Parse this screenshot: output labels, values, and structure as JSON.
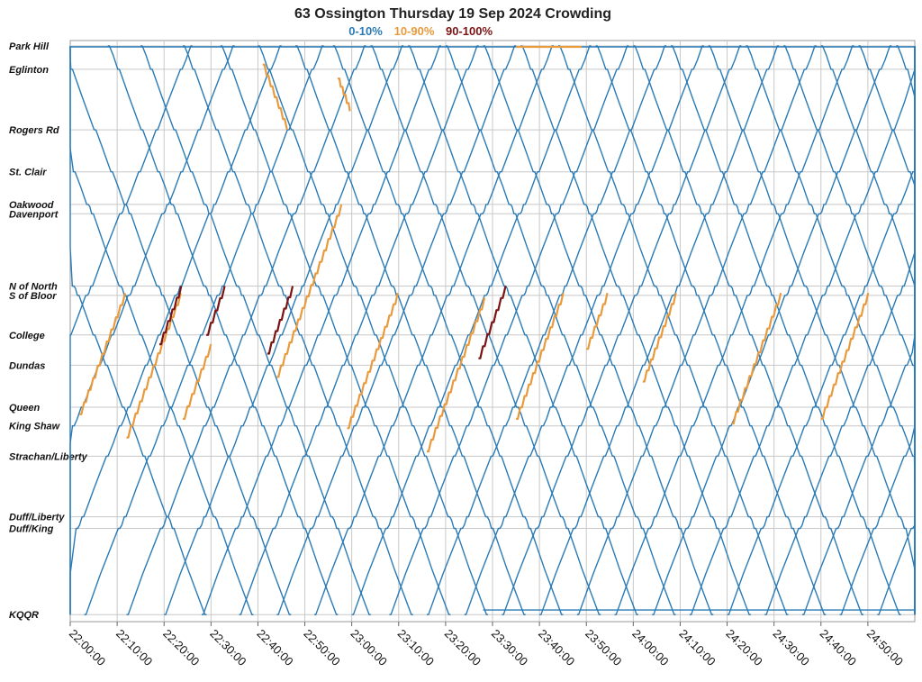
{
  "chart_data": {
    "type": "line",
    "title": "63 Ossington Thursday 19 Sep 2024 Crowding",
    "legend": [
      {
        "label": "0-10%",
        "color": "#2a7ab5"
      },
      {
        "label": "10-90%",
        "color": "#e89a3c"
      },
      {
        "label": "90-100%",
        "color": "#7a1414"
      }
    ],
    "x_tick_labels": [
      "22:00:00",
      "22:10:00",
      "22:20:00",
      "22:30:00",
      "22:40:00",
      "22:50:00",
      "23:00:00",
      "23:10:00",
      "23:20:00",
      "23:30:00",
      "23:40:00",
      "23:50:00",
      "24:00:00",
      "24:10:00",
      "24:20:00",
      "24:30:00",
      "24:40:00",
      "24:50:00"
    ],
    "x_range_minutes": [
      0,
      180
    ],
    "stops": [
      {
        "name": "Park Hill",
        "distance": 0
      },
      {
        "name": "Eglinton",
        "distance": 0.5
      },
      {
        "name": "Rogers Rd",
        "distance": 1.8
      },
      {
        "name": "St. Clair",
        "distance": 2.7
      },
      {
        "name": "Oakwood",
        "distance": 3.4
      },
      {
        "name": "Davenport",
        "distance": 3.6
      },
      {
        "name": "N of North",
        "distance": 5.15
      },
      {
        "name": "S of Bloor",
        "distance": 5.35
      },
      {
        "name": "College",
        "distance": 6.2
      },
      {
        "name": "Dundas",
        "distance": 6.85
      },
      {
        "name": "Queen",
        "distance": 7.75
      },
      {
        "name": "King Shaw",
        "distance": 8.15
      },
      {
        "name": "Strachan/Liberty",
        "distance": 8.8
      },
      {
        "name": "Duff/Liberty",
        "distance": 10.1
      },
      {
        "name": "Duff/King",
        "distance": 10.35
      },
      {
        "name": "KQQR",
        "distance": 12.2
      }
    ],
    "grid": true,
    "y_range": [
      0,
      12.35
    ],
    "trips_southbound_start_minutes": [
      -20,
      -10,
      -2,
      8,
      15,
      24,
      32,
      40,
      48,
      56,
      64,
      72,
      80,
      88,
      96,
      104,
      112,
      120,
      128,
      136,
      144,
      152,
      160,
      168,
      176
    ],
    "trips_northbound_start_minutes": [
      -25,
      -16,
      -6,
      3,
      12,
      20,
      28,
      36,
      44,
      52,
      60,
      68,
      76,
      84,
      92,
      100,
      108,
      116,
      124,
      132,
      140,
      148,
      156,
      164,
      172
    ],
    "southbound_run_minutes": 44,
    "northbound_run_minutes": 46,
    "crowded_segments": [
      {
        "direction": "north",
        "start_minute": 2,
        "from": 7.9,
        "to": 5.3,
        "level": "10-90%"
      },
      {
        "direction": "north",
        "start_minute": 12,
        "from": 8.4,
        "to": 5.3,
        "level": "10-90%"
      },
      {
        "direction": "north",
        "start_minute": 19,
        "from": 6.4,
        "to": 5.15,
        "level": "90-100%"
      },
      {
        "direction": "north",
        "start_minute": 24,
        "from": 8.0,
        "to": 6.4,
        "level": "10-90%"
      },
      {
        "direction": "north",
        "start_minute": 29,
        "from": 6.2,
        "to": 5.15,
        "level": "90-100%"
      },
      {
        "direction": "north",
        "start_minute": 42,
        "from": 6.6,
        "to": 5.15,
        "level": "90-100%"
      },
      {
        "direction": "north",
        "start_minute": 44,
        "from": 7.1,
        "to": 3.4,
        "level": "10-90%"
      },
      {
        "direction": "south",
        "start_minute": 41,
        "from": 0.4,
        "to": 1.8,
        "level": "10-90%"
      },
      {
        "direction": "south",
        "start_minute": 57,
        "from": 0.7,
        "to": 1.4,
        "level": "10-90%"
      },
      {
        "direction": "north",
        "start_minute": 59,
        "from": 8.2,
        "to": 5.3,
        "level": "10-90%"
      },
      {
        "direction": "north",
        "start_minute": 76,
        "from": 8.7,
        "to": 5.4,
        "level": "10-90%"
      },
      {
        "direction": "north",
        "start_minute": 87,
        "from": 6.7,
        "to": 5.15,
        "level": "90-100%"
      },
      {
        "direction": "north",
        "start_minute": 95,
        "from": 8.0,
        "to": 5.3,
        "level": "10-90%"
      },
      {
        "direction": "north",
        "start_minute": 110,
        "from": 6.5,
        "to": 5.3,
        "level": "10-90%"
      },
      {
        "direction": "north",
        "start_minute": 122,
        "from": 7.2,
        "to": 5.3,
        "level": "10-90%"
      },
      {
        "direction": "north",
        "start_minute": 141,
        "from": 8.1,
        "to": 5.3,
        "level": "10-90%"
      },
      {
        "direction": "north",
        "start_minute": 160,
        "from": 8.0,
        "to": 5.3,
        "level": "10-90%"
      },
      {
        "direction": "layover",
        "start_minute": 95,
        "from": 0,
        "to": 0,
        "level": "10-90%"
      }
    ]
  }
}
